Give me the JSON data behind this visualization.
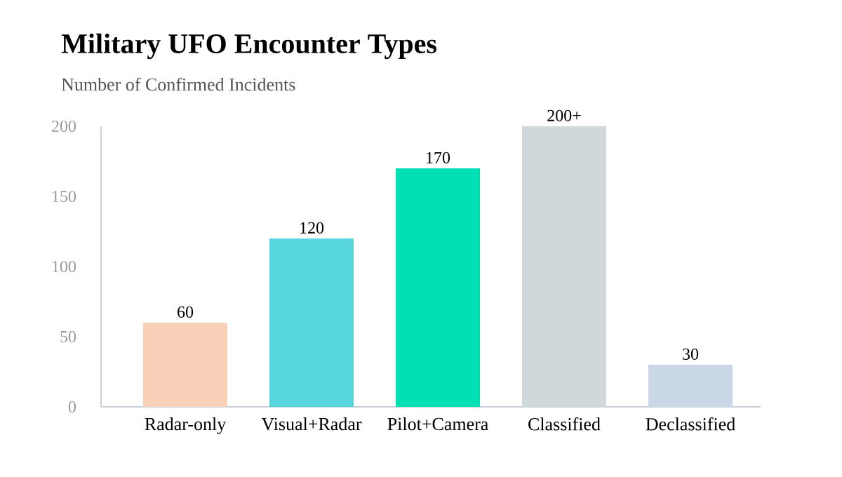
{
  "chart_data": {
    "type": "bar",
    "title": "Military UFO Encounter Types",
    "subtitle": "Number of Confirmed Incidents",
    "categories": [
      "Radar-only",
      "Visual+Radar",
      "Pilot+Camera",
      "Classified",
      "Declassified"
    ],
    "values": [
      60,
      120,
      170,
      200,
      30
    ],
    "colors": [
      "#f9d0b8",
      "#56d5dc",
      "#00e0b4",
      "#d0d8db",
      "#c9d7e6"
    ],
    "value_labels": [
      "60",
      "120",
      "170",
      "200+",
      "30"
    ],
    "ylim": [
      0,
      200
    ],
    "yticks": [
      0,
      50,
      100,
      150,
      200
    ],
    "grid": false
  }
}
